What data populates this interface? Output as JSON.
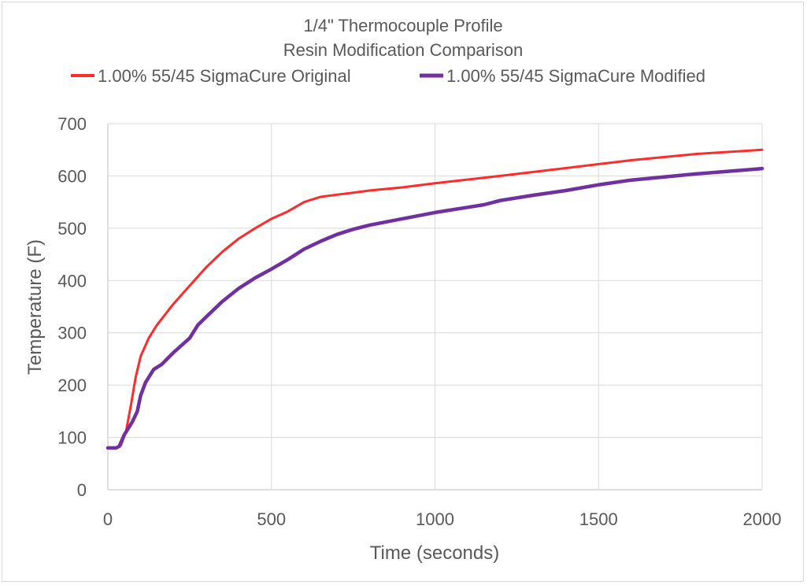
{
  "chart_data": {
    "type": "line",
    "title": [
      "1/4\" Thermocouple Profile",
      "Resin Modification Comparison"
    ],
    "xlabel": "Time (seconds)",
    "ylabel": "Temperature (F)",
    "xlim": [
      0,
      2000
    ],
    "ylim": [
      0,
      700
    ],
    "xticks": [
      0,
      500,
      1000,
      1500,
      2000
    ],
    "yticks": [
      0,
      100,
      200,
      300,
      400,
      500,
      600,
      700
    ],
    "grid": true,
    "legend_position": "top",
    "series": [
      {
        "name": "1.00% 55/45 SigmaCure Original",
        "color": "#ff2a2a",
        "x": [
          0,
          25,
          40,
          55,
          70,
          85,
          100,
          125,
          150,
          200,
          250,
          300,
          350,
          400,
          450,
          500,
          550,
          600,
          650,
          700,
          750,
          800,
          900,
          1000,
          1200,
          1400,
          1600,
          1800,
          2000
        ],
        "y": [
          80,
          80,
          85,
          110,
          160,
          215,
          255,
          290,
          315,
          355,
          390,
          425,
          455,
          480,
          500,
          518,
          532,
          550,
          560,
          564,
          568,
          572,
          578,
          586,
          600,
          615,
          630,
          642,
          650
        ]
      },
      {
        "name": "1.00% 55/45 SigmaCure Modified",
        "color": "#7030a0",
        "x": [
          0,
          25,
          35,
          50,
          75,
          90,
          100,
          115,
          140,
          165,
          200,
          250,
          275,
          300,
          350,
          400,
          450,
          500,
          550,
          600,
          650,
          700,
          750,
          800,
          900,
          1000,
          1100,
          1150,
          1200,
          1300,
          1400,
          1500,
          1600,
          1800,
          2000
        ],
        "y": [
          80,
          80,
          83,
          105,
          130,
          150,
          180,
          205,
          230,
          240,
          262,
          290,
          315,
          330,
          360,
          385,
          405,
          422,
          440,
          460,
          475,
          488,
          498,
          506,
          518,
          530,
          540,
          545,
          553,
          563,
          572,
          583,
          592,
          604,
          614
        ]
      }
    ]
  }
}
